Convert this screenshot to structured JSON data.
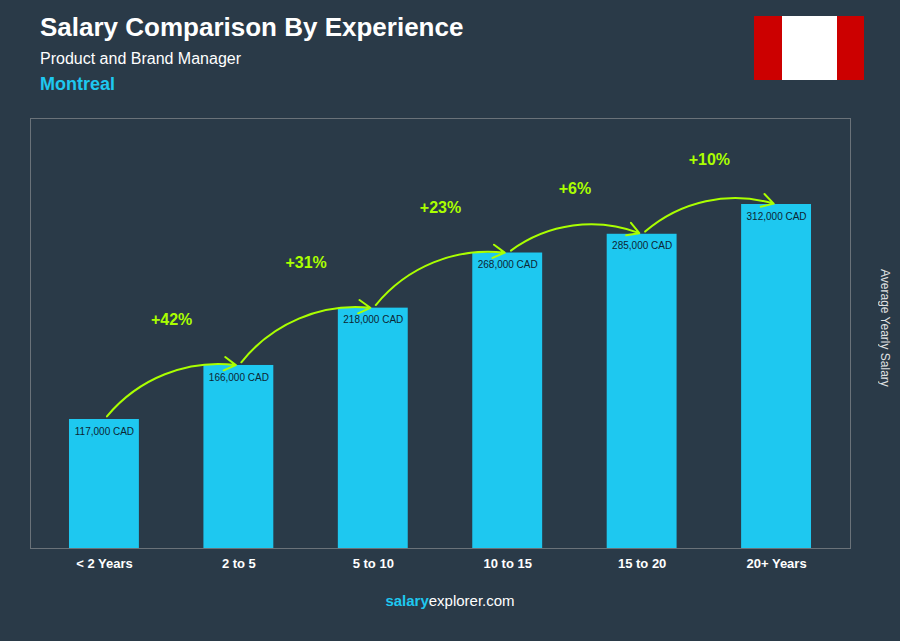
{
  "chart_data": {
    "type": "bar",
    "title": "Salary Comparison By Experience",
    "subtitle": "Product and Brand Manager",
    "city": "Montreal",
    "ylabel": "Average Yearly Salary",
    "footer": [
      "salary",
      "explorer.com"
    ],
    "categories": [
      "< 2 Years",
      "2 to 5",
      "5 to 10",
      "10 to 15",
      "15 to 20",
      "20+ Years"
    ],
    "values": [
      117000,
      166000,
      218000,
      268000,
      285000,
      312000
    ],
    "value_labels": [
      "117,000 CAD",
      "166,000 CAD",
      "218,000 CAD",
      "268,000 CAD",
      "285,000 CAD",
      "312,000 CAD"
    ],
    "data_labels": true,
    "color": "#1ec8f0",
    "ylim": [
      0,
      390000
    ],
    "tick_labels": "x",
    "annotations": [
      {
        "text": "+42%",
        "from": "< 2 Years",
        "to": "2 to 5",
        "color": "#aaff00"
      },
      {
        "text": "+31%",
        "from": "2 to 5",
        "to": "5 to 10",
        "color": "#aaff00"
      },
      {
        "text": "+23%",
        "from": "5 to 10",
        "to": "10 to 15",
        "color": "#aaff00"
      },
      {
        "text": "+6%",
        "from": "10 to 15",
        "to": "15 to 20",
        "color": "#aaff00"
      },
      {
        "text": "+10%",
        "from": "15 to 20",
        "to": "20+ Years",
        "color": "#aaff00"
      }
    ]
  }
}
